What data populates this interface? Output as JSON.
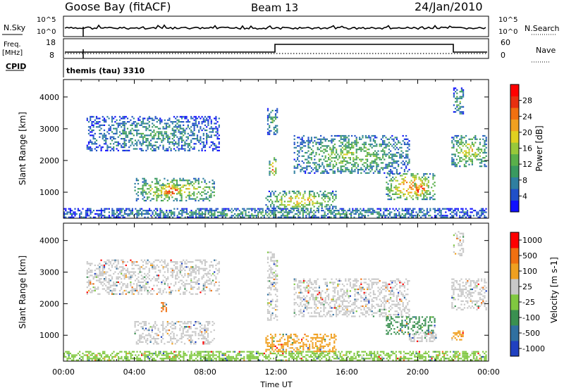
{
  "header": {
    "station": "Goose Bay (fitACF)",
    "beam": "Beam 13",
    "date": "24/Jan/2010"
  },
  "panels": {
    "nsky_label": "N.Sky",
    "nsearch_label": "N.Search",
    "nsky_ticks": [
      "10^5",
      "10^0"
    ],
    "nsearch_ticks": [
      "10^5",
      "10^0"
    ],
    "freq_label": "Freq.",
    "freq_unit": "[MHz]",
    "freq_ticks": [
      "18",
      "8"
    ],
    "nave_label": "Nave",
    "nave_ticks": [
      "60",
      "0"
    ],
    "cpid_label": "CPID",
    "cpid_value": "themis (tau) 3310"
  },
  "chart_data": [
    {
      "type": "heatmap",
      "name": "power",
      "ylabel": "Slant Range [km]",
      "yticks": [
        1000,
        2000,
        3000,
        4000
      ],
      "ylim": [
        180,
        4550
      ],
      "xlim": [
        0,
        24
      ],
      "colorbar": {
        "label": "Power [dB]",
        "ticks": [
          "4",
          "8",
          "12",
          "16",
          "20",
          "24",
          "28"
        ],
        "colors": [
          "#1010ff",
          "#2050c8",
          "#2f7fa0",
          "#3a9a60",
          "#5ab04a",
          "#98c83a",
          "#e0d020",
          "#f0a020",
          "#f07010",
          "#e83010",
          "#ff0000"
        ]
      },
      "regions": [
        {
          "t0": 0.0,
          "t1": 23.9,
          "r0": 190,
          "r1": 500,
          "level": 0.25
        },
        {
          "t0": 1.3,
          "t1": 8.8,
          "r0": 2300,
          "r1": 3400,
          "level": 0.25
        },
        {
          "t0": 4.0,
          "t1": 8.5,
          "r0": 750,
          "r1": 1450,
          "level": 0.5
        },
        {
          "t0": 5.5,
          "t1": 6.6,
          "r0": 900,
          "r1": 1250,
          "level": 0.8
        },
        {
          "t0": 11.4,
          "t1": 15.4,
          "r0": 500,
          "r1": 1050,
          "level": 0.5
        },
        {
          "t0": 11.6,
          "t1": 12.0,
          "r0": 1550,
          "r1": 2100,
          "level": 0.65
        },
        {
          "t0": 11.5,
          "t1": 12.1,
          "r0": 2800,
          "r1": 3650,
          "level": 0.3
        },
        {
          "t0": 13.0,
          "t1": 19.5,
          "r0": 1600,
          "r1": 2800,
          "level": 0.35
        },
        {
          "t0": 18.2,
          "t1": 21.0,
          "r0": 800,
          "r1": 1600,
          "level": 0.6
        },
        {
          "t0": 19.8,
          "t1": 20.4,
          "r0": 900,
          "r1": 1300,
          "level": 0.95
        },
        {
          "t0": 21.9,
          "t1": 23.9,
          "r0": 1800,
          "r1": 2800,
          "level": 0.45
        },
        {
          "t0": 22.0,
          "t1": 22.6,
          "r0": 3500,
          "r1": 4300,
          "level": 0.3
        }
      ]
    },
    {
      "type": "heatmap",
      "name": "velocity",
      "ylabel": "Slant Range [km]",
      "xlabel": "Time UT",
      "yticks": [
        1000,
        2000,
        3000,
        4000
      ],
      "xticks": [
        "00:00",
        "04:00",
        "08:00",
        "12:00",
        "16:00",
        "20:00",
        "00:00"
      ],
      "ylim": [
        180,
        4550
      ],
      "xlim": [
        0,
        24
      ],
      "colorbar": {
        "label": "Velocity [m s-1]",
        "ticks": [
          "1000",
          "500",
          "100",
          "25",
          "-25",
          "-100",
          "-500",
          "-1000"
        ],
        "colors": [
          "#2040c0",
          "#3070a0",
          "#3a9050",
          "#80c840",
          "#c8c8c8",
          "#f0a020",
          "#f07010",
          "#ff0000"
        ]
      },
      "regions": [
        {
          "t0": 0.0,
          "t1": 23.9,
          "r0": 190,
          "r1": 500,
          "v": "#80c840"
        },
        {
          "t0": 1.3,
          "t1": 8.8,
          "r0": 2300,
          "r1": 3400,
          "v": "#c8c8c8"
        },
        {
          "t0": 4.0,
          "t1": 8.5,
          "r0": 750,
          "r1": 1450,
          "v": "#c8c8c8"
        },
        {
          "t0": 11.4,
          "t1": 15.4,
          "r0": 500,
          "r1": 1050,
          "v": "#f0a020"
        },
        {
          "t0": 5.5,
          "t1": 5.8,
          "r0": 1750,
          "r1": 2050,
          "v": "#f07010"
        },
        {
          "t0": 11.5,
          "t1": 12.1,
          "r0": 1500,
          "r1": 3650,
          "v": "#c8c8c8"
        },
        {
          "t0": 13.0,
          "t1": 19.5,
          "r0": 1600,
          "r1": 2800,
          "v": "#c8c8c8"
        },
        {
          "t0": 18.2,
          "t1": 21.0,
          "r0": 1050,
          "r1": 1600,
          "v": "#3a9050"
        },
        {
          "t0": 19.5,
          "t1": 21.0,
          "r0": 800,
          "r1": 1100,
          "v": "#c8c8c8"
        },
        {
          "t0": 21.9,
          "t1": 23.9,
          "r0": 1800,
          "r1": 2800,
          "v": "#c8c8c8"
        },
        {
          "t0": 21.9,
          "t1": 22.6,
          "r0": 850,
          "r1": 1150,
          "v": "#f0a020"
        },
        {
          "t0": 22.0,
          "t1": 22.6,
          "r0": 3500,
          "r1": 4300,
          "v": "#c8c8c8"
        }
      ]
    }
  ]
}
